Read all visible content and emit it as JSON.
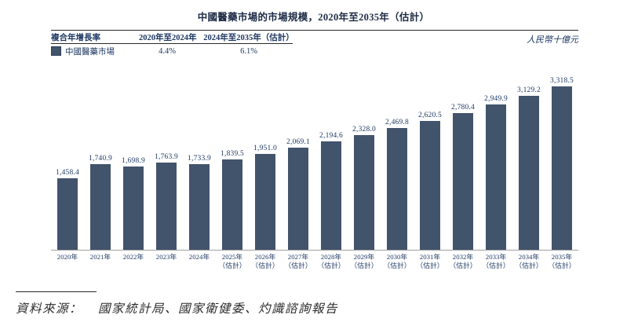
{
  "title": "中國醫藥市場的市場規模，2020年至2035年（估計）",
  "unit_label": "人民幣十億元",
  "legend_table": {
    "header": {
      "col0": "複合年增長率",
      "col1": "2020年至2024年",
      "col2": "2024年至2035年（估計）"
    },
    "row": {
      "label": "中國醫藥市場",
      "cagr_2020_2024": "4.4%",
      "cagr_2024_2035": "6.1%"
    }
  },
  "source": {
    "label": "資料來源：",
    "text": "國家統計局、國家衛健委、灼識諮詢報告"
  },
  "colors": {
    "bar": "#42536c",
    "text_navy": "#1f3864",
    "axis_line": "#a0a0a0",
    "rule": "#2b2b2b"
  },
  "chart_data": {
    "type": "bar",
    "title": "中國醫藥市場的市場規模，2020年至2035年（估計）",
    "xlabel": "",
    "ylabel": "人民幣十億元",
    "ylim": [
      0,
      3500
    ],
    "grid": false,
    "legend_position": "top-left",
    "legend": [
      "中國醫藥市場"
    ],
    "annotations": {
      "cagr_2020_2024": "4.4%",
      "cagr_2024_2035_estimate": "6.1%"
    },
    "categories": [
      {
        "year": "2020年",
        "note": ""
      },
      {
        "year": "2021年",
        "note": ""
      },
      {
        "year": "2022年",
        "note": ""
      },
      {
        "year": "2023年",
        "note": ""
      },
      {
        "year": "2024年",
        "note": ""
      },
      {
        "year": "2025年",
        "note": "（估計）"
      },
      {
        "year": "2026年",
        "note": "（估計）"
      },
      {
        "year": "2027年",
        "note": "（估計）"
      },
      {
        "year": "2028年",
        "note": "（估計）"
      },
      {
        "year": "2029年",
        "note": "（估計）"
      },
      {
        "year": "2030年",
        "note": "（估計）"
      },
      {
        "year": "2031年",
        "note": "（估計）"
      },
      {
        "year": "2032年",
        "note": "（估計）"
      },
      {
        "year": "2033年",
        "note": "（估計）"
      },
      {
        "year": "2034年",
        "note": "（估計）"
      },
      {
        "year": "2035年",
        "note": "（估計）"
      }
    ],
    "values": [
      1458.4,
      1740.9,
      1698.9,
      1763.9,
      1733.9,
      1839.5,
      1951.0,
      2069.1,
      2194.6,
      2328.0,
      2469.8,
      2620.5,
      2780.4,
      2949.9,
      3129.2,
      3318.5
    ],
    "value_labels": [
      "1,458.4",
      "1,740.9",
      "1,698.9",
      "1,763.9",
      "1,733.9",
      "1,839.5",
      "1,951.0",
      "2,069.1",
      "2,194.6",
      "2,328.0",
      "2,469.8",
      "2,620.5",
      "2,780.4",
      "2,949.9",
      "3,129.2",
      "3,318.5"
    ]
  }
}
